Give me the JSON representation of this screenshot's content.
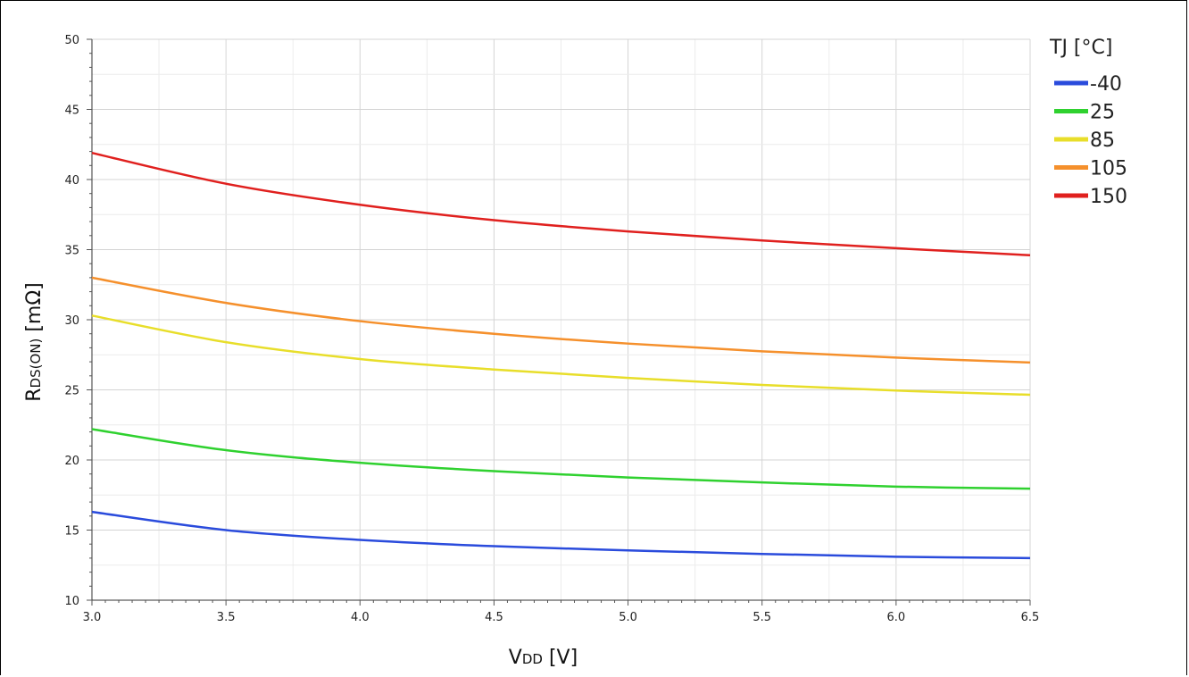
{
  "chart_data": {
    "type": "line",
    "title": "",
    "xlabel": {
      "main": "V",
      "sub": "DD",
      "unit": " [V]"
    },
    "ylabel": {
      "main": "R",
      "sub": "DS(ON)",
      "unit": " [mΩ]"
    },
    "xlim": [
      3.0,
      6.5
    ],
    "ylim": [
      10,
      50
    ],
    "x_ticks": [
      "3.0",
      "3.5",
      "4.0",
      "4.5",
      "5.0",
      "5.5",
      "6.0",
      "6.5"
    ],
    "y_ticks": [
      "10",
      "15",
      "20",
      "25",
      "30",
      "35",
      "40",
      "45",
      "50"
    ],
    "grid": true,
    "legend_title": "TJ [°C]",
    "legend_position": "right",
    "x": [
      3.0,
      3.5,
      4.0,
      4.5,
      5.0,
      5.5,
      6.0,
      6.5
    ],
    "series": [
      {
        "name": "-40",
        "color": "#2a4bdc",
        "values": [
          16.3,
          15.0,
          14.3,
          13.85,
          13.55,
          13.3,
          13.1,
          13.0
        ]
      },
      {
        "name": "25",
        "color": "#2fd12f",
        "values": [
          22.2,
          20.7,
          19.8,
          19.2,
          18.75,
          18.4,
          18.1,
          17.95
        ]
      },
      {
        "name": "85",
        "color": "#e8de2a",
        "values": [
          30.3,
          28.4,
          27.2,
          26.45,
          25.85,
          25.35,
          24.95,
          24.65
        ]
      },
      {
        "name": "105",
        "color": "#f5902c",
        "values": [
          33.0,
          31.2,
          29.9,
          29.0,
          28.3,
          27.75,
          27.3,
          26.95
        ]
      },
      {
        "name": "150",
        "color": "#e0201e",
        "values": [
          41.9,
          39.7,
          38.2,
          37.1,
          36.3,
          35.65,
          35.1,
          34.6
        ]
      }
    ]
  }
}
